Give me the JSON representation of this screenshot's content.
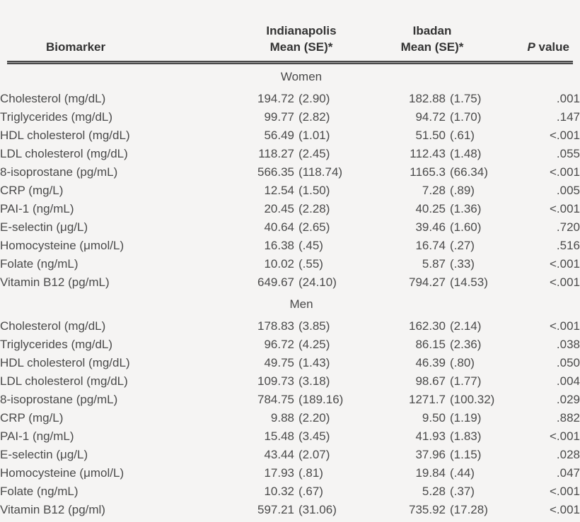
{
  "table": {
    "header": {
      "biomarker": "Biomarker",
      "indianapolis": [
        "Indianapolis",
        "Mean (SE)*"
      ],
      "ibadan": [
        "Ibadan",
        "Mean (SE)*"
      ],
      "p_italic": "P",
      "p_word": "value"
    },
    "sections": [
      {
        "label": "Women",
        "rows": [
          {
            "bio": "Cholesterol (mg/dL)",
            "m1": "194.72",
            "se1": "(2.90)",
            "m2": "182.88",
            "se2": "(1.75)",
            "p": ".001"
          },
          {
            "bio": "Triglycerides (mg/dL)",
            "m1": "99.77",
            "se1": "(2.82)",
            "m2": "94.72",
            "se2": "(1.70)",
            "p": ".147"
          },
          {
            "bio": "HDL cholesterol (mg/dL)",
            "m1": "56.49",
            "se1": "(1.01)",
            "m2": "51.50",
            "se2": "(.61)",
            "p": "<.001"
          },
          {
            "bio": "LDL cholesterol (mg/dL)",
            "m1": "118.27",
            "se1": "(2.45)",
            "m2": "112.43",
            "se2": "(1.48)",
            "p": ".055"
          },
          {
            "bio": "8-isoprostane (pg/mL)",
            "m1": "566.35",
            "se1": "(118.74)",
            "m2": "1165.3",
            "se2": "(66.34)",
            "p": "<.001"
          },
          {
            "bio": "CRP (mg/L)",
            "m1": "12.54",
            "se1": "(1.50)",
            "m2": "7.28",
            "se2": "(.89)",
            "p": ".005"
          },
          {
            "bio": "PAI-1 (ng/mL)",
            "m1": "20.45",
            "se1": "(2.28)",
            "m2": "40.25",
            "se2": "(1.36)",
            "p": "<.001"
          },
          {
            "bio": "E-selectin (μg/L)",
            "m1": "40.64",
            "se1": "(2.65)",
            "m2": "39.46",
            "se2": "(1.60)",
            "p": ".720"
          },
          {
            "bio": "Homocysteine (μmol/L)",
            "m1": "16.38",
            "se1": "(.45)",
            "m2": "16.74",
            "se2": "(.27)",
            "p": ".516"
          },
          {
            "bio": "Folate (ng/mL)",
            "m1": "10.02",
            "se1": "(.55)",
            "m2": "5.87",
            "se2": "(.33)",
            "p": "<.001"
          },
          {
            "bio": "Vitamin B12 (pg/mL)",
            "m1": "649.67",
            "se1": "(24.10)",
            "m2": "794.27",
            "se2": "(14.53)",
            "p": "<.001"
          }
        ]
      },
      {
        "label": "Men",
        "rows": [
          {
            "bio": "Cholesterol (mg/dL)",
            "m1": "178.83",
            "se1": "(3.85)",
            "m2": "162.30",
            "se2": "(2.14)",
            "p": "<.001"
          },
          {
            "bio": "Triglycerides (mg/dL)",
            "m1": "96.72",
            "se1": "(4.25)",
            "m2": "86.15",
            "se2": "(2.36)",
            "p": ".038"
          },
          {
            "bio": "HDL cholesterol (mg/dL)",
            "m1": "49.75",
            "se1": "(1.43)",
            "m2": "46.39",
            "se2": "(.80)",
            "p": ".050"
          },
          {
            "bio": "LDL cholesterol (mg/dL)",
            "m1": "109.73",
            "se1": "(3.18)",
            "m2": "98.67",
            "se2": "(1.77)",
            "p": ".004"
          },
          {
            "bio": "8-isoprostane (pg/mL)",
            "m1": "784.75",
            "se1": "(189.16)",
            "m2": "1271.7",
            "se2": "(100.32)",
            "p": ".029"
          },
          {
            "bio": "CRP (mg/L)",
            "m1": "9.88",
            "se1": "(2.20)",
            "m2": "9.50",
            "se2": "(1.19)",
            "p": ".882"
          },
          {
            "bio": "PAI-1 (ng/mL)",
            "m1": "15.48",
            "se1": "(3.45)",
            "m2": "41.93",
            "se2": "(1.83)",
            "p": "<.001"
          },
          {
            "bio": "E-selectin (μg/L)",
            "m1": "43.44",
            "se1": "(2.07)",
            "m2": "37.96",
            "se2": "(1.15)",
            "p": ".028"
          },
          {
            "bio": "Homocysteine (μmol/L)",
            "m1": "17.93",
            "se1": "(.81)",
            "m2": "19.84",
            "se2": "(.44)",
            "p": ".047"
          },
          {
            "bio": "Folate (ng/mL)",
            "m1": "10.32",
            "se1": "(.67)",
            "m2": "5.28",
            "se2": "(.37)",
            "p": "<.001"
          },
          {
            "bio": "Vitamin B12 (pg/ml)",
            "m1": "597.21",
            "se1": "(31.06)",
            "m2": "735.92",
            "se2": "(17.28)",
            "p": "<.001"
          }
        ]
      }
    ],
    "colors": {
      "background": "#f5f4f3",
      "body_text": "#4a4a4a",
      "header_text": "#333333",
      "rule": "#4a4a4a"
    }
  }
}
